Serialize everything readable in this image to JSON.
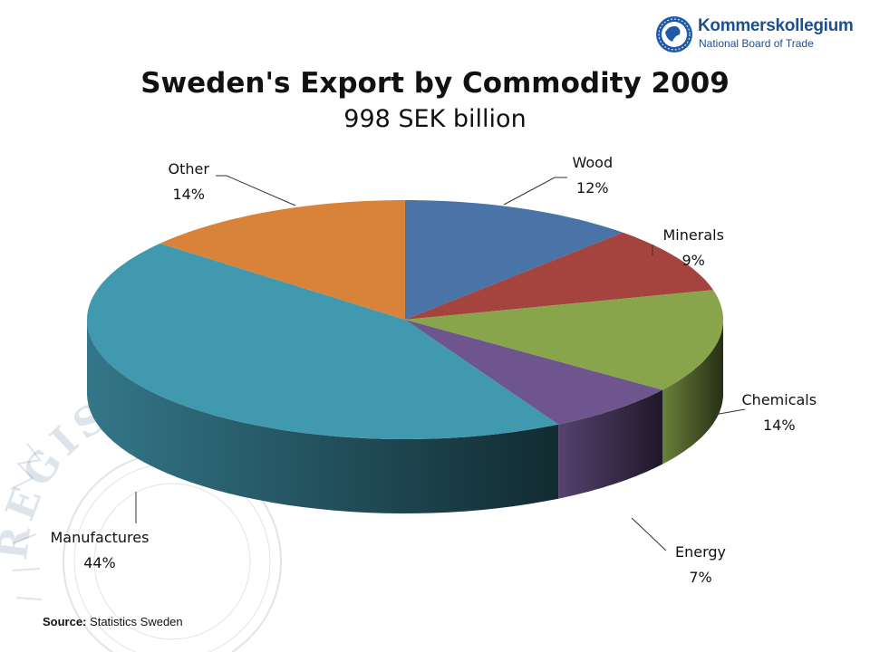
{
  "header": {
    "logo_name": "Kommerskollegium",
    "logo_tagline": "National Board of Trade",
    "watermark_text": "REGIS"
  },
  "chart_data": {
    "type": "pie",
    "title": "Sweden's Export by Commodity 2009",
    "subtitle": "998 SEK billion",
    "slices": [
      {
        "label": "Wood",
        "value": 12,
        "display": "12%",
        "color": "#4A73A8"
      },
      {
        "label": "Minerals",
        "value": 9,
        "display": "9%",
        "color": "#A5443F"
      },
      {
        "label": "Chemicals",
        "value": 14,
        "display": "14%",
        "color": "#88A54C"
      },
      {
        "label": "Energy",
        "value": 7,
        "display": "7%",
        "color": "#6E558E"
      },
      {
        "label": "Manufactures",
        "value": 44,
        "display": "44%",
        "color": "#4199B0"
      },
      {
        "label": "Other",
        "value": 14,
        "display": "14%",
        "color": "#D8823A"
      }
    ],
    "style": "3d-tilted"
  },
  "footer": {
    "source_label": "Source:",
    "source_value": "Statistics Sweden"
  }
}
